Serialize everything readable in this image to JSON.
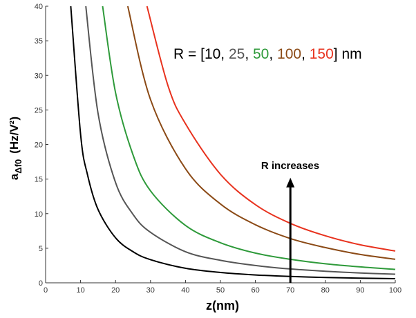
{
  "chart_data": {
    "type": "line",
    "xlabel": "z(nm)",
    "ylabel": {
      "main": "a",
      "sub": "Δf0",
      "unit": "(Hz/V²)"
    },
    "xlim": [
      0,
      100
    ],
    "ylim": [
      0,
      40
    ],
    "xticks": [
      0,
      10,
      20,
      30,
      40,
      50,
      60,
      70,
      80,
      90,
      100
    ],
    "yticks": [
      0,
      5,
      10,
      15,
      20,
      25,
      30,
      35,
      40
    ],
    "grid": false,
    "legend": {
      "position": "top-right",
      "prefix": "R = [",
      "items": [
        {
          "text": "10",
          "color": "#000000"
        },
        {
          "text": "25",
          "color": "#555555"
        },
        {
          "text": "50",
          "color": "#2e9a3a"
        },
        {
          "text": "100",
          "color": "#8b4a16"
        },
        {
          "text": "150",
          "color": "#e8321e"
        }
      ],
      "separator": ", ",
      "suffix": "] nm"
    },
    "annotation": {
      "text": "R increases",
      "arrow_x": 70,
      "arrow_y_from": 0,
      "arrow_y_to": 15
    },
    "series": [
      {
        "color": "#000000",
        "x": [
          7.2,
          10,
          12,
          15,
          20,
          25,
          30,
          40,
          50,
          60,
          70,
          80,
          90,
          100
        ],
        "y": [
          40,
          21.5,
          15.6,
          10.6,
          6.5,
          4.5,
          3.35,
          2.1,
          1.5,
          1.14,
          0.92,
          0.78,
          0.68,
          0.6
        ]
      },
      {
        "color": "#555555",
        "x": [
          11.5,
          15,
          20,
          25,
          30,
          40,
          50,
          60,
          70,
          80,
          90,
          100
        ],
        "y": [
          40,
          24.5,
          14.5,
          9.9,
          7.3,
          4.5,
          3.25,
          2.5,
          2.0,
          1.68,
          1.42,
          1.25
        ]
      },
      {
        "color": "#2e9a3a",
        "x": [
          16.3,
          20,
          25,
          30,
          40,
          50,
          60,
          70,
          80,
          90,
          100
        ],
        "y": [
          40,
          27.5,
          18.5,
          13.3,
          8.3,
          5.8,
          4.3,
          3.4,
          2.75,
          2.3,
          1.95
        ]
      },
      {
        "color": "#8b4a16",
        "x": [
          23.5,
          30,
          40,
          50,
          60,
          70,
          80,
          90,
          100
        ],
        "y": [
          40,
          26.5,
          16.5,
          11.4,
          8.4,
          6.4,
          5.1,
          4.1,
          3.4
        ]
      },
      {
        "color": "#e8321e",
        "x": [
          29,
          35,
          40,
          50,
          60,
          70,
          80,
          90,
          100
        ],
        "y": [
          40,
          28.5,
          23,
          15.7,
          11.3,
          8.6,
          6.8,
          5.5,
          4.6
        ]
      }
    ]
  }
}
